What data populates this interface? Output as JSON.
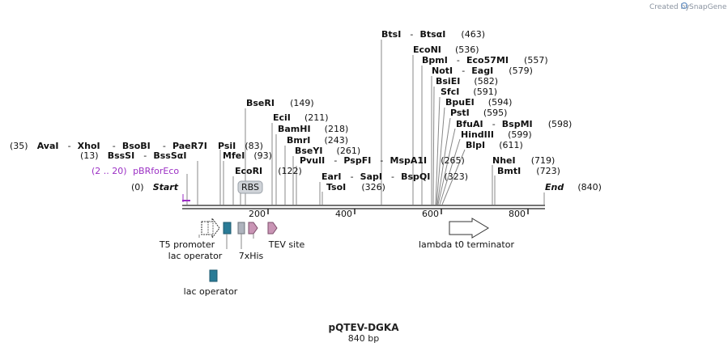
{
  "credit": {
    "text": "Created by",
    "brand": "SnapGene"
  },
  "plasmid": {
    "name": "pQTEV-DGKA",
    "length_label": "840 bp"
  },
  "ends": {
    "start_pos": "(0)",
    "start_label": "Start",
    "end_label": "End",
    "end_pos": "(840)"
  },
  "primer": {
    "range": "(2 .. 20)",
    "name": "pBRforEco"
  },
  "ruler": [
    "200",
    "400",
    "600",
    "800"
  ],
  "enzyme_labels": {
    "l1_pos": "(35)",
    "l1_a": "AvaI",
    "l1_b": "XhoI",
    "l1_c": "BsoBI",
    "l1_d": "PaeR7I",
    "l2_pos": "(13)",
    "l2_a": "BssSI",
    "l2_b": "BssSαI",
    "psi": "PsiI",
    "psi_pos": "(83)",
    "mfe": "MfeI",
    "mfe_pos": "(93)",
    "bse": "BseRI",
    "bse_pos": "(149)",
    "eco": "EcoRI",
    "eco_pos": "(122)",
    "eci": "EciI",
    "eci_pos": "(211)",
    "bam": "BamHI",
    "bam_pos": "(218)",
    "bmr": "BmrI",
    "bmr_pos": "(243)",
    "bsey": "BseYI",
    "bsey_pos": "(261)",
    "pvu": "PvuII",
    "pspf": "PspFI",
    "mspa": "MspA1I",
    "pvu_pos": "(265)",
    "ear": "EarI",
    "sap": "SapI",
    "bspq": "BspQI",
    "ear_pos": "(323)",
    "tso": "TsoI",
    "tso_pos": "(326)",
    "bts": "BtsI",
    "btsa": "BtsαI",
    "bts_pos": "(463)",
    "econ": "EcoNI",
    "econ_pos": "(536)",
    "bpm": "BpmI",
    "eco57": "Eco57MI",
    "bpm_pos": "(557)",
    "not": "NotI",
    "eag": "EagI",
    "not_pos": "(579)",
    "bsie": "BsiEI",
    "bsie_pos": "(582)",
    "sfc": "SfcI",
    "sfc_pos": "(591)",
    "bpue": "BpuEI",
    "bpue_pos": "(594)",
    "pst": "PstI",
    "pst_pos": "(595)",
    "bfua": "BfuAI",
    "bspm": "BspMI",
    "bfua_pos": "(598)",
    "hind": "HindIII",
    "hind_pos": "(599)",
    "blp": "BlpI",
    "blp_pos": "(611)",
    "nhe": "NheI",
    "nhe_pos": "(719)",
    "bmt": "BmtI",
    "bmt_pos": "(723)"
  },
  "features": {
    "rbs": "RBS",
    "t5": "T5 promoter",
    "lacop": "lac operator",
    "his": "7xHis",
    "tev": "TEV site",
    "lambda": "lambda t0 terminator",
    "lacop2": "lac operator"
  },
  "colors": {
    "lac_operator": "#2a7b96",
    "his_tag": "#aeb3bd",
    "tev_site": "#c995b5",
    "rbs_fill": "#cfd3d8",
    "primer": "#9b2fc4",
    "backbone": "#222222"
  }
}
